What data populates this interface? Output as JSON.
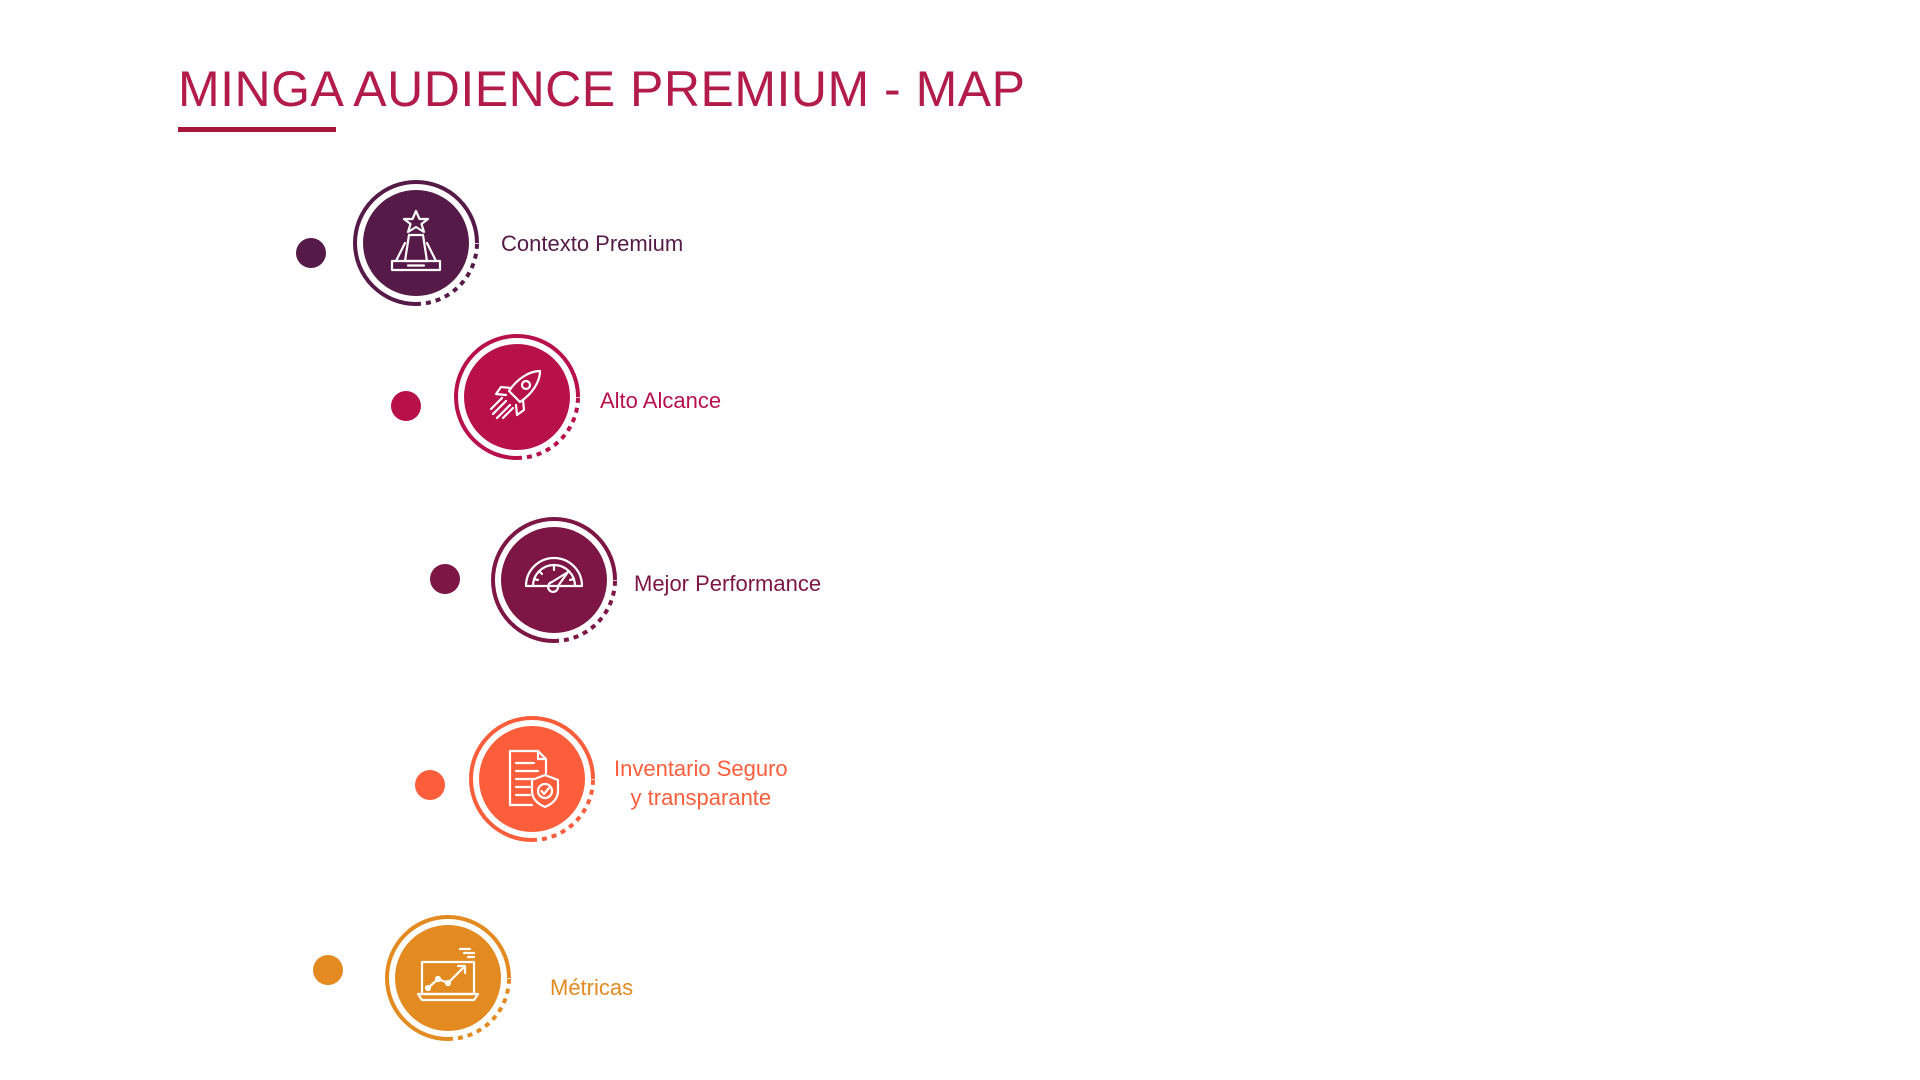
{
  "title": "MINGA AUDIENCE PREMIUM - MAP",
  "items": [
    {
      "label_lines": [
        "Contexto Premium"
      ],
      "icon": "trophy-icon",
      "color": "#561A48"
    },
    {
      "label_lines": [
        "Alto Alcance"
      ],
      "icon": "rocket-icon",
      "color": "#B8114A"
    },
    {
      "label_lines": [
        "Mejor Performance"
      ],
      "icon": "speedometer-icon",
      "color": "#7D1545"
    },
    {
      "label_lines": [
        "Inventario Seguro",
        "y transparante"
      ],
      "icon": "secure-document-icon",
      "color": "#FC5E3C"
    },
    {
      "label_lines": [
        "Métricas"
      ],
      "icon": "analytics-screen-icon",
      "color": "#E38A21"
    }
  ]
}
